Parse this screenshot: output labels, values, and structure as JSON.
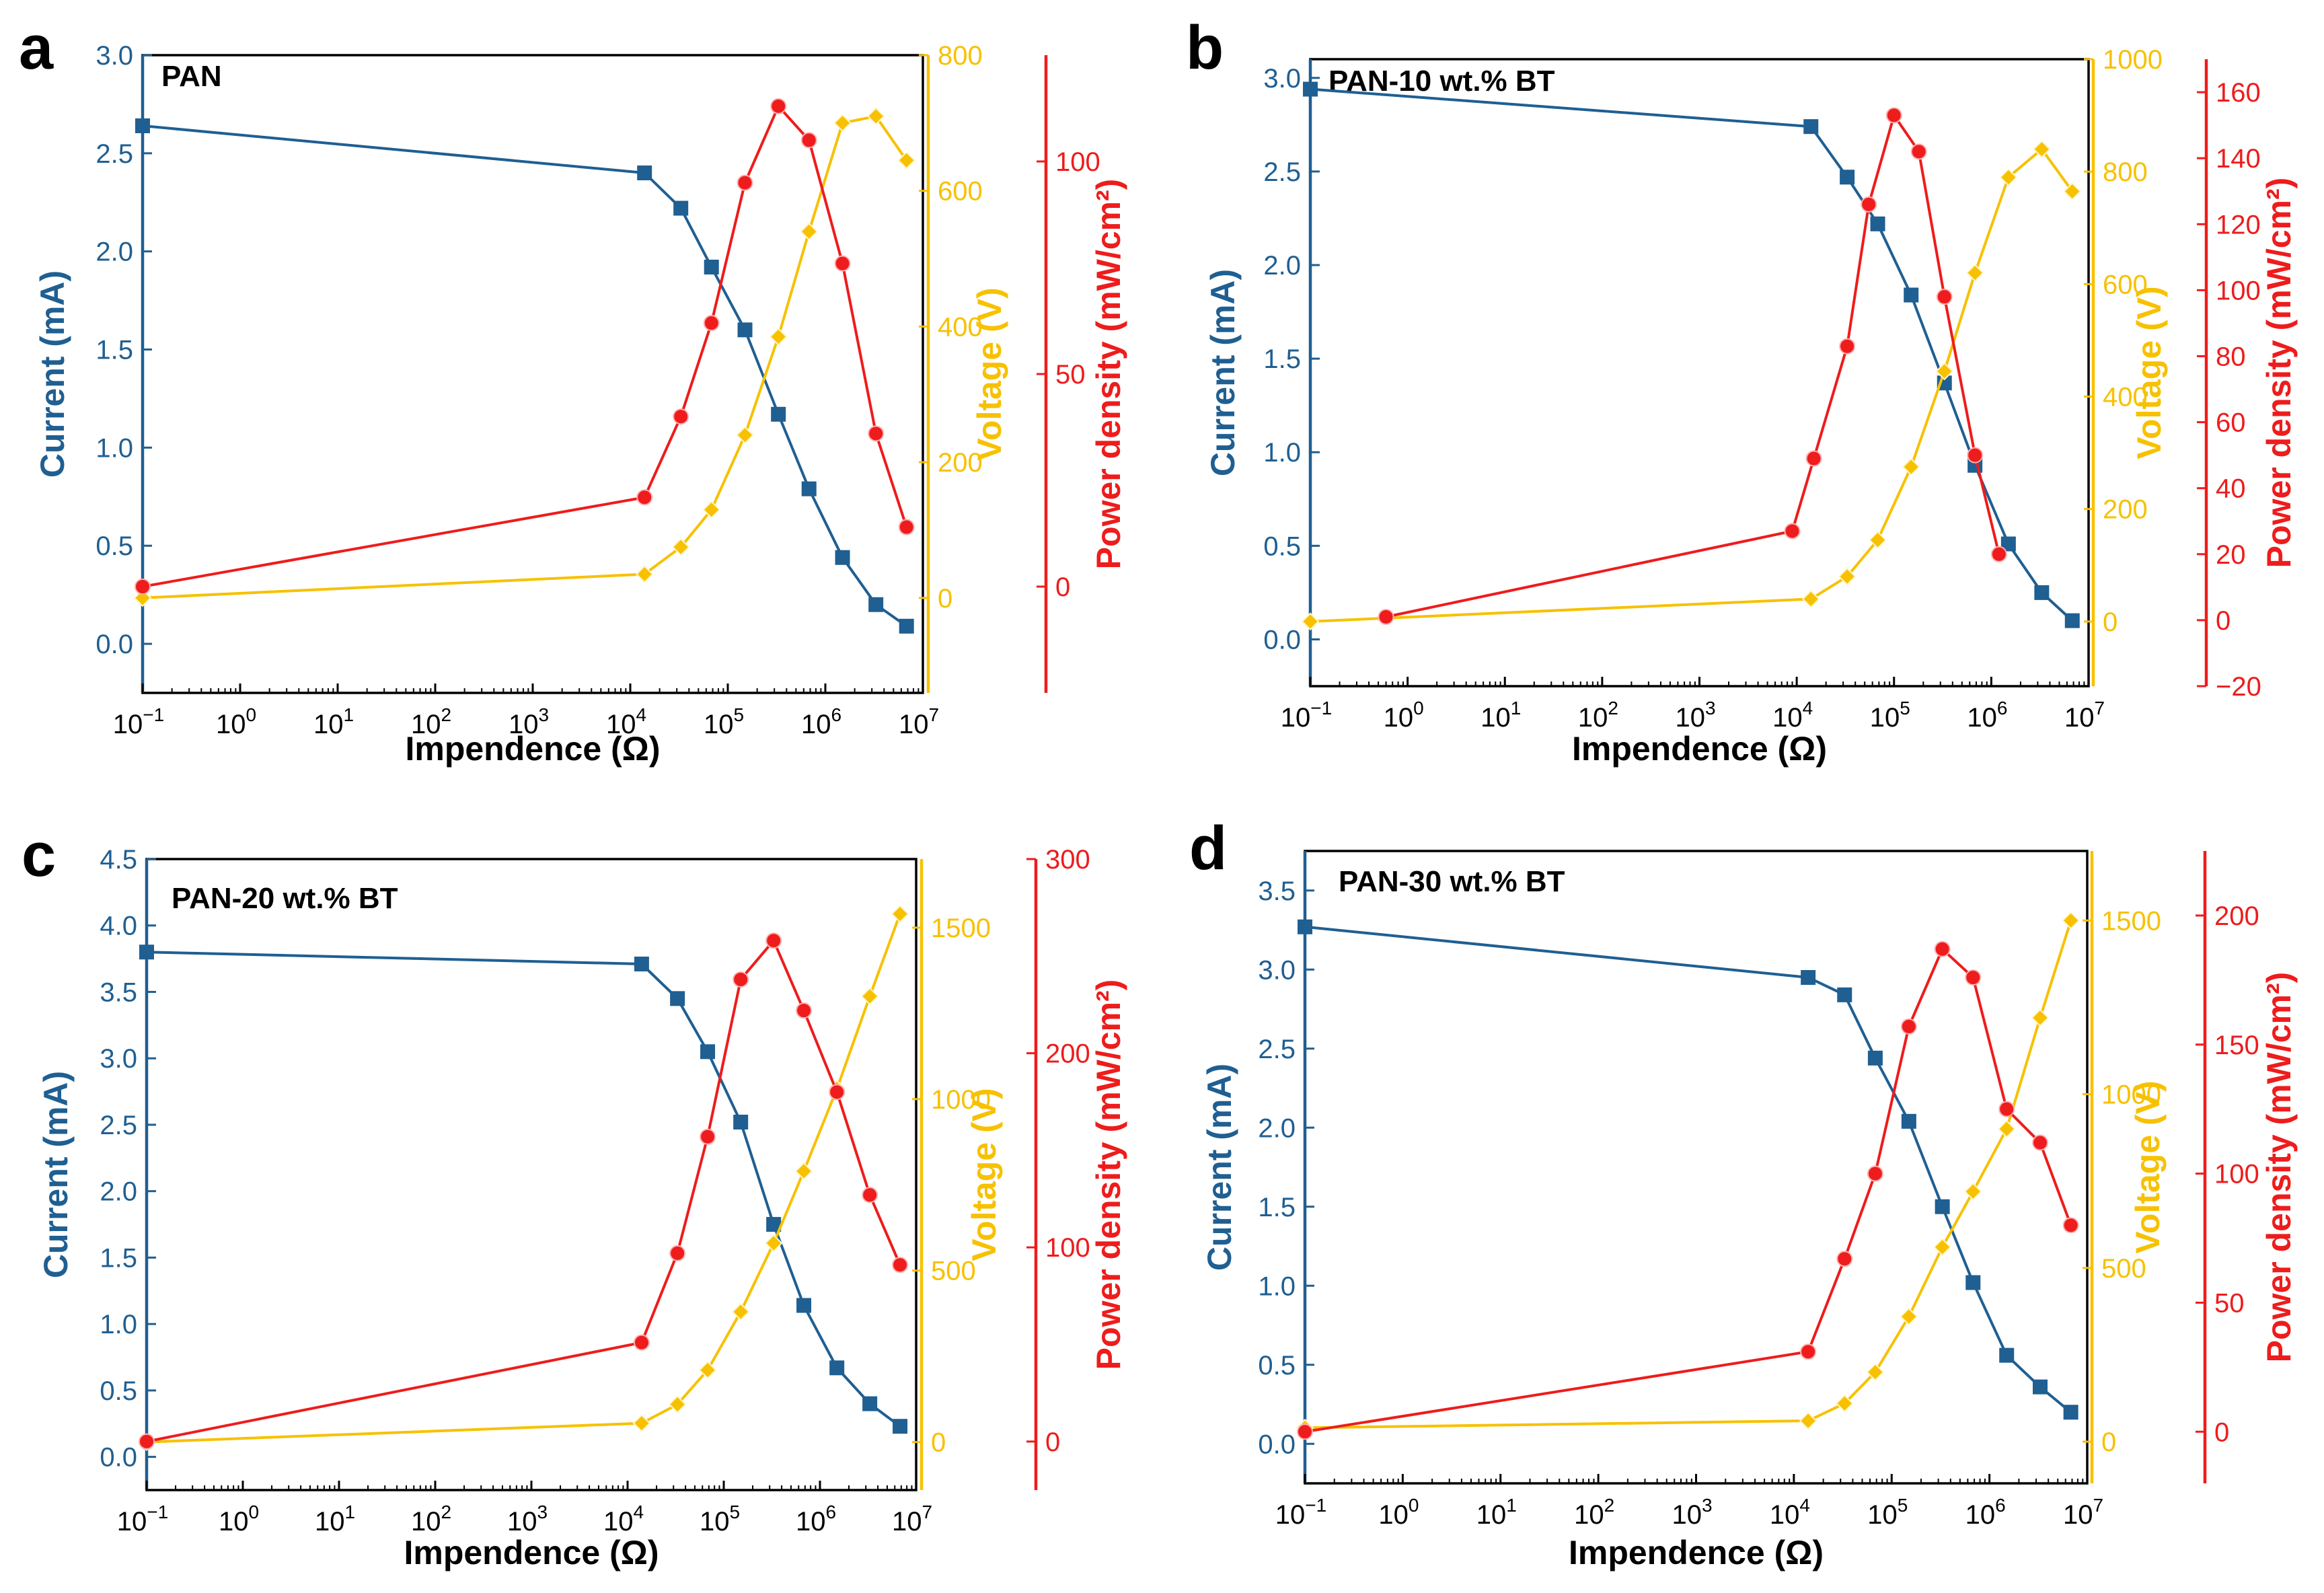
{
  "figure": {
    "colors": {
      "current": "#1f5f92",
      "voltage": "#f7c100",
      "power": "#ee1c1c",
      "axis": "#000000"
    },
    "x_ticks": [
      {
        "b": "10",
        "e": "−1",
        "log": -1
      },
      {
        "b": "10",
        "e": "0",
        "log": 0
      },
      {
        "b": "10",
        "e": "1",
        "log": 1
      },
      {
        "b": "10",
        "e": "2",
        "log": 2
      },
      {
        "b": "10",
        "e": "3",
        "log": 3
      },
      {
        "b": "10",
        "e": "4",
        "log": 4
      },
      {
        "b": "10",
        "e": "5",
        "log": 5
      },
      {
        "b": "10",
        "e": "6",
        "log": 6
      },
      {
        "b": "10",
        "e": "7",
        "log": 7
      }
    ]
  },
  "chart_data": [
    {
      "panel": "a",
      "type": "line",
      "title": "PAN",
      "xlabel": "Impendence (Ω)",
      "xscale": "log",
      "xlim": [
        0.1,
        10000000
      ],
      "grid": false,
      "y_left": {
        "label": "Current (mA)",
        "lim": [
          -0.25,
          3.0
        ],
        "ticks": [
          "0.0",
          "0.5",
          "1.0",
          "1.5",
          "2.0",
          "2.5",
          "3.0"
        ]
      },
      "y_right1": {
        "label": "Voltage (V)",
        "lim": [
          -140,
          800
        ],
        "ticks": [
          "0",
          "200",
          "400",
          "600",
          "800"
        ]
      },
      "y_right2": {
        "label": "Power density (mW/cm²)",
        "lim": [
          -25,
          125
        ],
        "ticks": [
          "0",
          "50",
          "100"
        ]
      },
      "series": [
        {
          "name": "Current",
          "axis": "left",
          "marker": "square",
          "x": [
            0.1,
            14000,
            33000,
            68000,
            150000,
            330000,
            680000,
            1500000,
            3300000,
            6800000
          ],
          "y": [
            2.64,
            2.4,
            2.22,
            1.92,
            1.6,
            1.17,
            0.79,
            0.44,
            0.2,
            0.09
          ]
        },
        {
          "name": "Voltage",
          "axis": "right1",
          "marker": "diamond",
          "x": [
            0.1,
            14000,
            33000,
            68000,
            150000,
            330000,
            680000,
            1500000,
            3300000,
            6800000
          ],
          "y": [
            0,
            35,
            75,
            130,
            240,
            385,
            540,
            700,
            710,
            645
          ]
        },
        {
          "name": "Power density",
          "axis": "right2",
          "marker": "circle",
          "x": [
            0.1,
            14000,
            33000,
            68000,
            150000,
            330000,
            680000,
            1500000,
            3300000,
            6800000
          ],
          "y": [
            0,
            21,
            40,
            62,
            95,
            113,
            105,
            76,
            36,
            14
          ]
        }
      ]
    },
    {
      "panel": "b",
      "type": "line",
      "title": "PAN-10 wt.% BT",
      "xlabel": "Impendence (Ω)",
      "xscale": "log",
      "xlim": [
        0.1,
        10000000
      ],
      "grid": false,
      "y_left": {
        "label": "Current (mA)",
        "lim": [
          -0.25,
          3.1
        ],
        "ticks": [
          "0.0",
          "0.5",
          "1.0",
          "1.5",
          "2.0",
          "2.5",
          "3.0"
        ]
      },
      "y_right1": {
        "label": "Voltage (V)",
        "lim": [
          -115,
          1000
        ],
        "ticks": [
          "0",
          "200",
          "400",
          "600",
          "800",
          "1000"
        ]
      },
      "y_right2": {
        "label": "Power density (mW/cm²)",
        "lim": [
          -20,
          170
        ],
        "ticks": [
          "−20",
          "0",
          "20",
          "40",
          "60",
          "80",
          "100",
          "120",
          "140",
          "160"
        ]
      },
      "series": [
        {
          "name": "Current",
          "axis": "left",
          "marker": "square",
          "x": [
            0.1,
            14000,
            33000,
            68000,
            150000,
            330000,
            680000,
            1500000,
            3300000,
            6800000
          ],
          "y": [
            2.94,
            2.74,
            2.47,
            2.22,
            1.84,
            1.37,
            0.93,
            0.51,
            0.25,
            0.1
          ]
        },
        {
          "name": "Voltage",
          "axis": "right1",
          "marker": "diamond",
          "x": [
            0.1,
            14000,
            33000,
            68000,
            150000,
            330000,
            680000,
            1500000,
            3300000,
            6800000
          ],
          "y": [
            0,
            40,
            80,
            145,
            275,
            445,
            620,
            790,
            840,
            765
          ]
        },
        {
          "name": "Power density",
          "axis": "right2",
          "marker": "circle",
          "x": [
            0.6,
            9000,
            15000,
            33000,
            55000,
            100000,
            180000,
            330000,
            680000,
            1200000
          ],
          "y": [
            1,
            27,
            49,
            83,
            126,
            153,
            142,
            98,
            50,
            20
          ]
        }
      ]
    },
    {
      "panel": "c",
      "type": "line",
      "title": "PAN-20 wt.% BT",
      "xlabel": "Impendence (Ω)",
      "xscale": "log",
      "xlim": [
        0.1,
        10000000
      ],
      "grid": false,
      "y_left": {
        "label": "Current (mA)",
        "lim": [
          -0.25,
          4.5
        ],
        "ticks": [
          "0.0",
          "0.5",
          "1.0",
          "1.5",
          "2.0",
          "2.5",
          "3.0",
          "3.5",
          "4.0",
          "4.5"
        ]
      },
      "y_right1": {
        "label": "Voltage (V)",
        "lim": [
          -140,
          1700
        ],
        "ticks": [
          "0",
          "500",
          "1000",
          "1500"
        ]
      },
      "y_right2": {
        "label": "Power density (mW/cm²)",
        "lim": [
          -25,
          300
        ],
        "ticks": [
          "0",
          "100",
          "200",
          "300"
        ]
      },
      "series": [
        {
          "name": "Current",
          "axis": "left",
          "marker": "square",
          "x": [
            0.1,
            14000,
            33000,
            68000,
            150000,
            330000,
            680000,
            1500000,
            3300000,
            6800000
          ],
          "y": [
            3.8,
            3.71,
            3.45,
            3.05,
            2.52,
            1.75,
            1.14,
            0.67,
            0.4,
            0.23
          ]
        },
        {
          "name": "Voltage",
          "axis": "right1",
          "marker": "diamond",
          "x": [
            0.1,
            14000,
            33000,
            68000,
            150000,
            330000,
            680000,
            1500000,
            3300000,
            6800000
          ],
          "y": [
            0,
            55,
            110,
            210,
            380,
            580,
            790,
            1030,
            1300,
            1540
          ]
        },
        {
          "name": "Power density",
          "axis": "right2",
          "marker": "circle",
          "x": [
            0.1,
            14000,
            33000,
            68000,
            150000,
            330000,
            680000,
            1500000,
            3300000,
            6800000
          ],
          "y": [
            0,
            51,
            97,
            157,
            238,
            258,
            222,
            180,
            127,
            91
          ]
        }
      ]
    },
    {
      "panel": "d",
      "type": "line",
      "title": "PAN-30 wt.% BT",
      "xlabel": "Impendence (Ω)",
      "xscale": "log",
      "xlim": [
        0.1,
        10000000
      ],
      "grid": false,
      "y_left": {
        "label": "Current (mA)",
        "lim": [
          -0.25,
          3.75
        ],
        "ticks": [
          "0.0",
          "0.5",
          "1.0",
          "1.5",
          "2.0",
          "2.5",
          "3.0",
          "3.5"
        ]
      },
      "y_right1": {
        "label": "Voltage (V)",
        "lim": [
          -120,
          1700
        ],
        "ticks": [
          "0",
          "500",
          "1000",
          "1500"
        ]
      },
      "y_right2": {
        "label": "Power density (mW/cm²)",
        "lim": [
          -20,
          225
        ],
        "ticks": [
          "0",
          "50",
          "100",
          "150",
          "200"
        ]
      },
      "series": [
        {
          "name": "Current",
          "axis": "left",
          "marker": "square",
          "x": [
            0.1,
            14000,
            33000,
            68000,
            150000,
            330000,
            680000,
            1500000,
            3300000,
            6800000
          ],
          "y": [
            3.27,
            2.95,
            2.84,
            2.44,
            2.04,
            1.5,
            1.02,
            0.56,
            0.36,
            0.2
          ]
        },
        {
          "name": "Voltage",
          "axis": "right1",
          "marker": "diamond",
          "x": [
            0.1,
            14000,
            33000,
            68000,
            150000,
            330000,
            680000,
            1500000,
            3300000,
            6800000
          ],
          "y": [
            40,
            60,
            110,
            200,
            360,
            560,
            720,
            900,
            1220,
            1500
          ]
        },
        {
          "name": "Power density",
          "axis": "right2",
          "marker": "circle",
          "x": [
            0.1,
            14000,
            33000,
            68000,
            150000,
            330000,
            680000,
            1500000,
            3300000,
            6800000
          ],
          "y": [
            0,
            31,
            67,
            100,
            157,
            187,
            176,
            125,
            112,
            80
          ]
        }
      ]
    }
  ]
}
